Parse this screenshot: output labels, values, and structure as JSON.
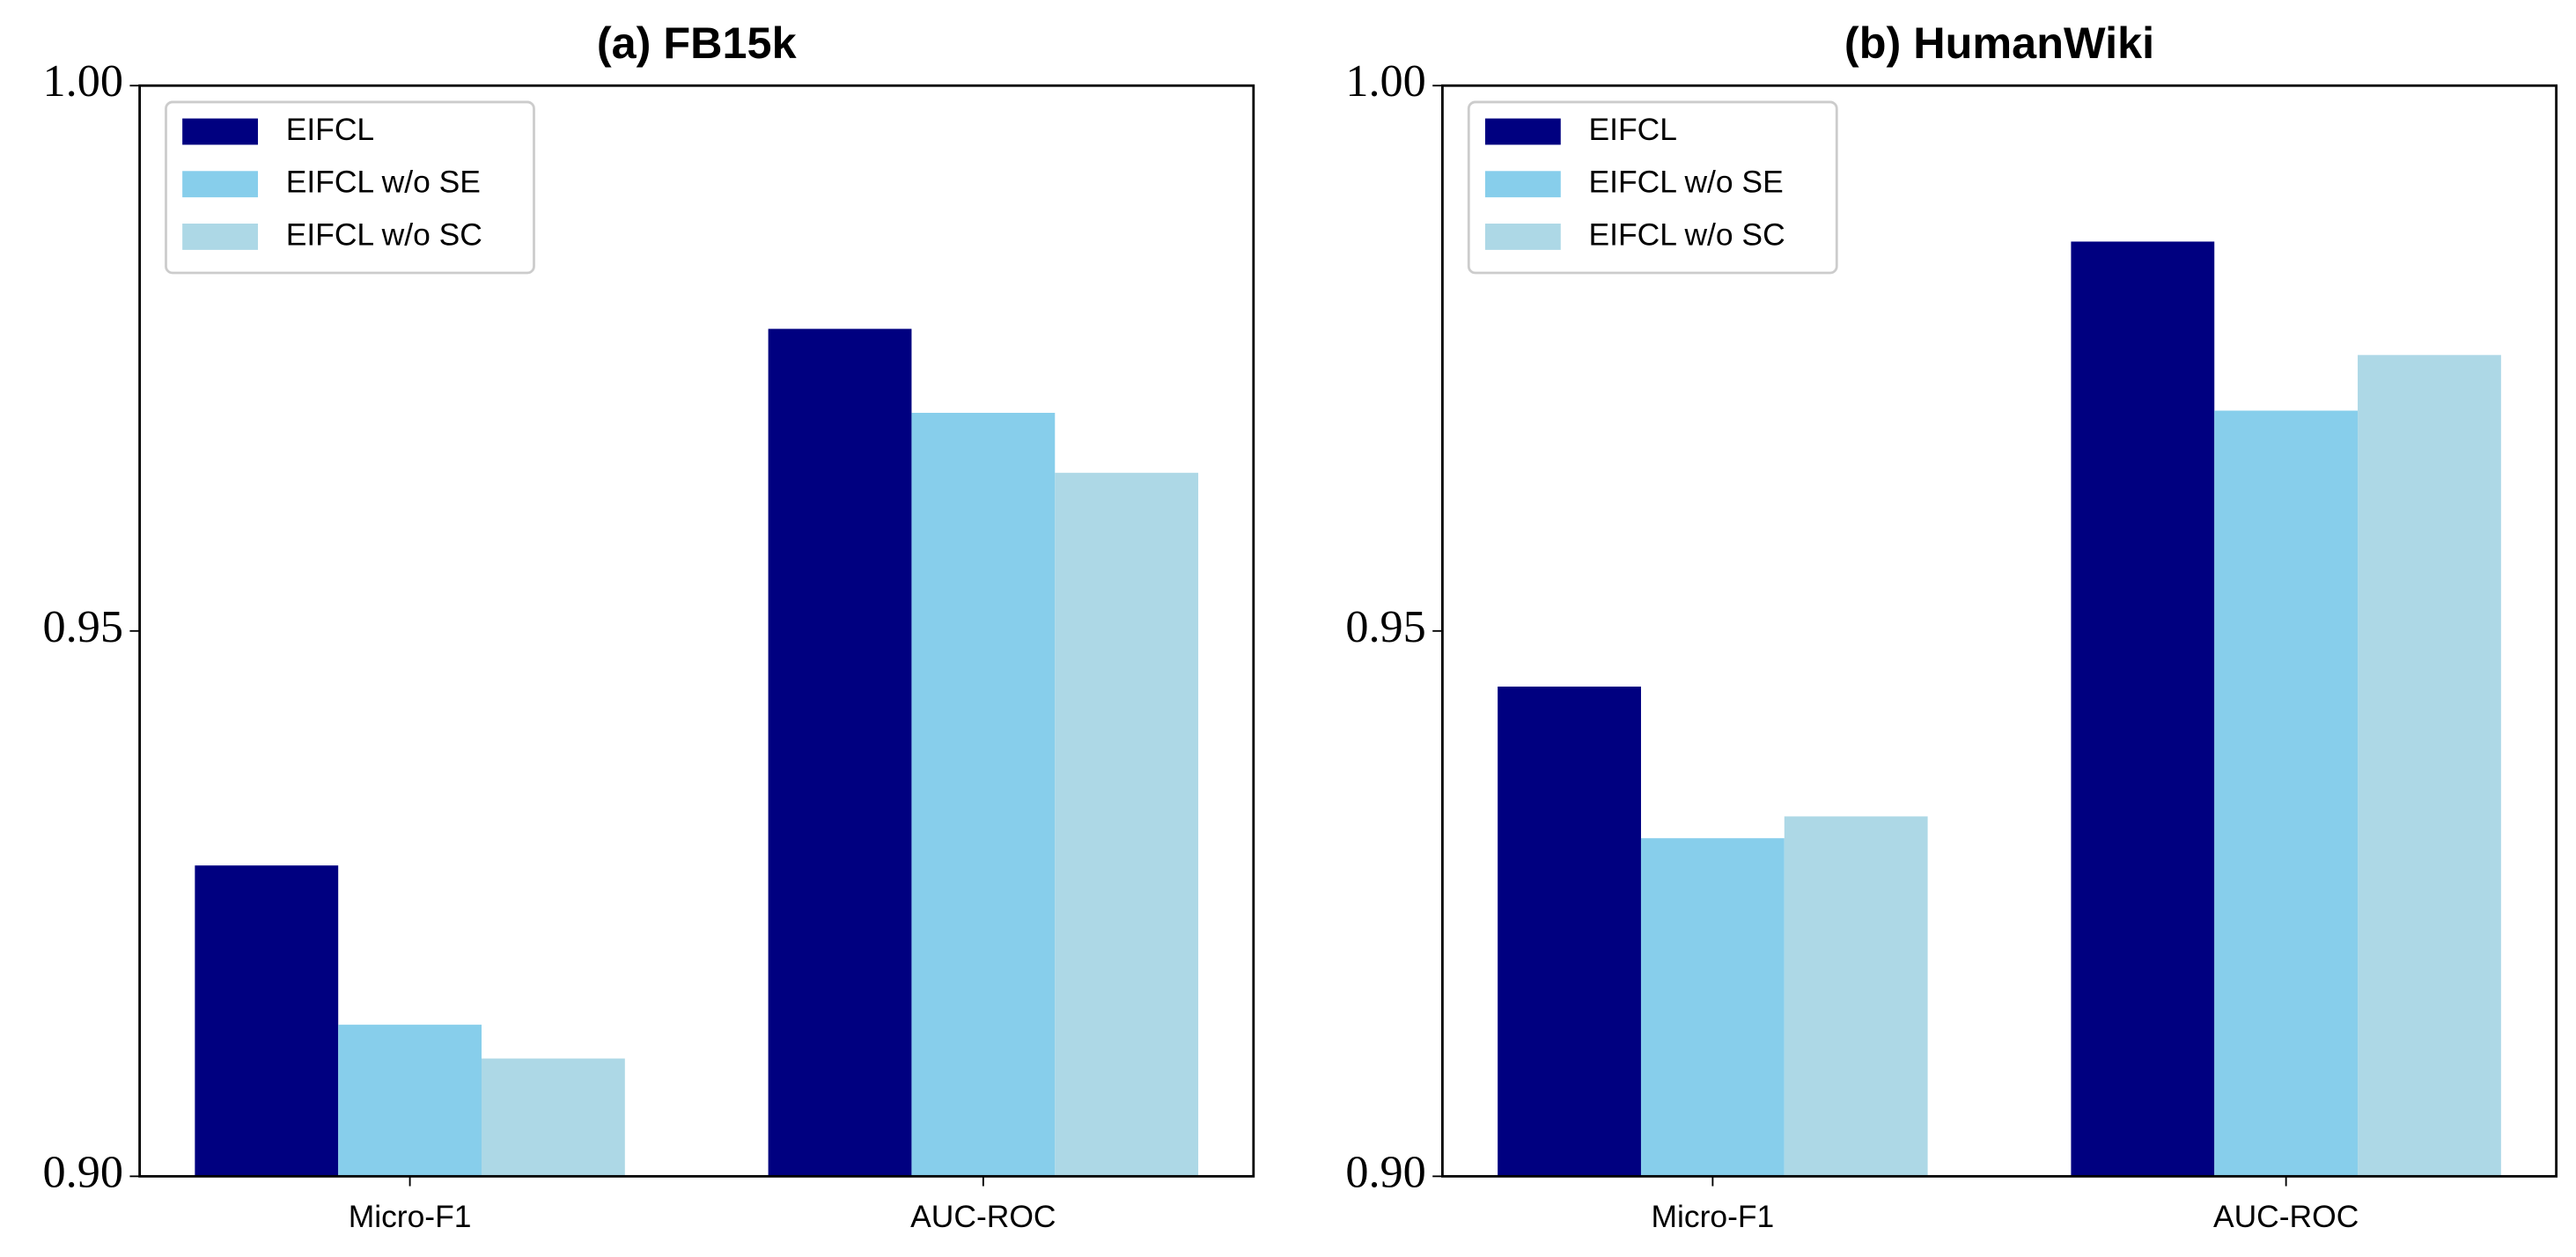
{
  "chart_data": [
    {
      "type": "bar",
      "title": "(a) FB15k",
      "categories": [
        "Micro-F1",
        "AUC-ROC"
      ],
      "series": [
        {
          "name": "EIFCL",
          "color": "#000080",
          "values": [
            0.9285,
            0.9777
          ]
        },
        {
          "name": "EIFCL w/o SE",
          "color": "#87ceeb",
          "values": [
            0.9139,
            0.97
          ]
        },
        {
          "name": "EIFCL w/o SC",
          "color": "#add8e6",
          "values": [
            0.9108,
            0.9645
          ]
        }
      ],
      "ylim": [
        0.9,
        1.0
      ],
      "yticks": [
        {
          "value": 0.9,
          "label": "0.90"
        },
        0.95,
        {
          "value": 1.0,
          "label": "1.00"
        }
      ],
      "legend": "upper left"
    },
    {
      "type": "bar",
      "title": "(b) HumanWiki",
      "categories": [
        "Micro-F1",
        "AUC-ROC"
      ],
      "series": [
        {
          "name": "EIFCL",
          "color": "#000080",
          "values": [
            0.9449,
            0.9857
          ]
        },
        {
          "name": "EIFCL w/o SE",
          "color": "#87ceeb",
          "values": [
            0.931,
            0.9702
          ]
        },
        {
          "name": "EIFCL w/o SC",
          "color": "#add8e6",
          "values": [
            0.933,
            0.9753
          ]
        }
      ],
      "ylim": [
        0.9,
        1.0
      ],
      "yticks": [
        {
          "value": 0.9,
          "label": "0.90"
        },
        0.95,
        {
          "value": 1.0,
          "label": "1.00"
        }
      ],
      "legend": "upper left"
    }
  ]
}
